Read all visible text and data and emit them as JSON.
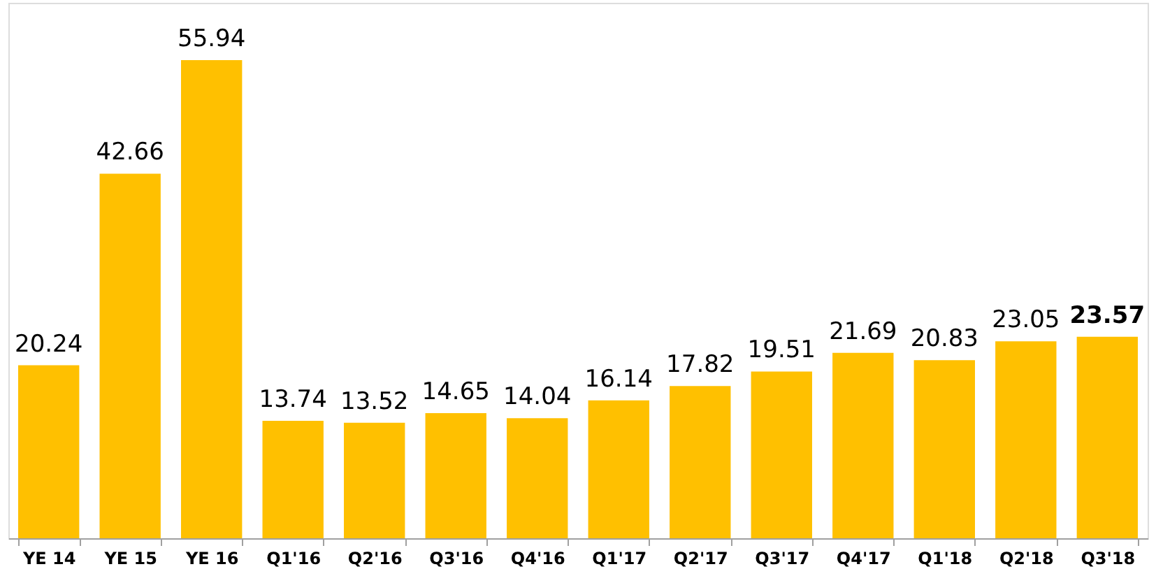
{
  "chart_data": {
    "type": "bar",
    "categories": [
      "YE 14",
      "YE 15",
      "YE 16",
      "Q1'16",
      "Q2'16",
      "Q3'16",
      "Q4'16",
      "Q1'17",
      "Q2'17",
      "Q3'17",
      "Q4'17",
      "Q1'18",
      "Q2'18",
      "Q3'18"
    ],
    "values": [
      20.24,
      42.66,
      55.94,
      13.74,
      13.52,
      14.65,
      14.04,
      16.14,
      17.82,
      19.51,
      21.69,
      20.83,
      23.05,
      23.57
    ],
    "color": "#ffc000",
    "data_labels": true
  }
}
